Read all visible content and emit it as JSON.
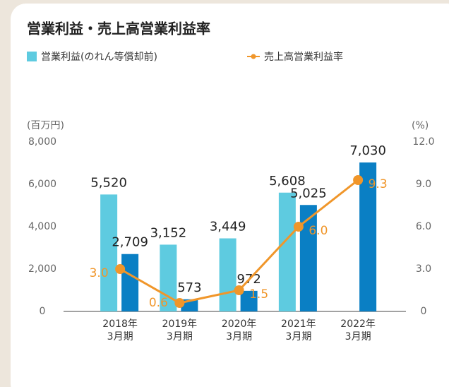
{
  "chart_data": {
    "type": "bar-line",
    "title": "営業利益・売上高営業利益率",
    "ylabel": "(百万円)",
    "y2label": "(%)",
    "categories": [
      [
        "2018年",
        "3月期"
      ],
      [
        "2019年",
        "3月期"
      ],
      [
        "2020年",
        "3月期"
      ],
      [
        "2021年",
        "3月期"
      ],
      [
        "2022年",
        "3月期"
      ]
    ],
    "series": [
      {
        "name": "営業利益(のれん等償却前)",
        "color": "#5ecbe0",
        "kind": "bar",
        "values": [
          5520,
          3152,
          3449,
          5608,
          null
        ],
        "value_labels": [
          "5,520",
          "3,152",
          "3,449",
          "5,608",
          null
        ]
      },
      {
        "color": "#0a7fc4",
        "kind": "bar",
        "values": [
          2709,
          573,
          972,
          5025,
          7030
        ],
        "value_labels": [
          "2,709",
          "573",
          "972",
          "5,025",
          "7,030"
        ]
      },
      {
        "name": "売上高営業利益率",
        "color": "#f0962a",
        "kind": "line",
        "axis": "y2",
        "values": [
          3.0,
          0.6,
          1.5,
          6.0,
          9.3
        ],
        "value_labels": [
          "3.0",
          "0.6",
          "1.5",
          "6.0",
          "9.3"
        ]
      }
    ],
    "ylim": [
      0,
      8000
    ],
    "yticks": [
      0,
      {
        "value": 2000,
        "label": "2,000"
      },
      {
        "value": 4000,
        "label": "4,000"
      },
      {
        "value": 6000,
        "label": "6,000"
      },
      {
        "value": 8000,
        "label": "8,000"
      }
    ],
    "y2lim": [
      0,
      12
    ],
    "y2ticks": [
      0,
      {
        "value": 3,
        "label": "3.0"
      },
      {
        "value": 6,
        "label": "6.0"
      },
      {
        "value": 9,
        "label": "9.0"
      },
      {
        "value": 12,
        "label": "12.0"
      }
    ],
    "grid": false
  }
}
